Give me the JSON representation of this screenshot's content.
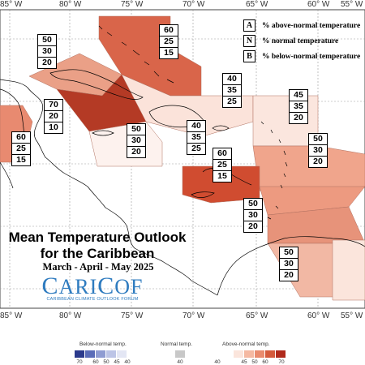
{
  "title_line1": "Mean Temperature Outlook",
  "title_line2": "for the Caribbean",
  "period": "March - April - May 2025",
  "logo": {
    "name_C": "C",
    "name_rest": "ARI",
    "name_C2": "C",
    "name_end": "OF",
    "subtitle": "CARIBBEAN CLIMATE OUTLOOK FORUM"
  },
  "key": [
    {
      "letter": "A",
      "text": "% above-normal temperature"
    },
    {
      "letter": "N",
      "text": "% normal temperature"
    },
    {
      "letter": "B",
      "text": "% below-normal temperature"
    }
  ],
  "longitudes_top": [
    "85° W",
    "80° W",
    "75° W",
    "70° W",
    "65° W",
    "60° W",
    "55° W"
  ],
  "longitudes_bottom": [
    "85° W",
    "80° W",
    "75° W",
    "70° W",
    "65° W",
    "60° W",
    "55° W"
  ],
  "boxes": [
    {
      "A": "60",
      "N": "25",
      "B": "15"
    },
    {
      "A": "50",
      "N": "30",
      "B": "20"
    },
    {
      "A": "70",
      "N": "20",
      "B": "10"
    },
    {
      "A": "60",
      "N": "25",
      "B": "15"
    },
    {
      "A": "40",
      "N": "35",
      "B": "25"
    },
    {
      "A": "45",
      "N": "35",
      "B": "20"
    },
    {
      "A": "50",
      "N": "30",
      "B": "20"
    },
    {
      "A": "40",
      "N": "35",
      "B": "25"
    },
    {
      "A": "50",
      "N": "30",
      "B": "20"
    },
    {
      "A": "60",
      "N": "25",
      "B": "15"
    },
    {
      "A": "50",
      "N": "30",
      "B": "20"
    },
    {
      "A": "50",
      "N": "30",
      "B": "20"
    }
  ],
  "colorbar": {
    "below_title": "Below-normal temp.",
    "normal_title": "Normal temp.",
    "above_title": "Above-normal temp.",
    "below_ticks": [
      "70",
      "60",
      "50",
      "45",
      "40"
    ],
    "normal_ticks": [
      "40"
    ],
    "above_ticks": [
      "40",
      "45",
      "50",
      "60",
      "70"
    ],
    "below_colors": [
      "#2b3a8c",
      "#5a6cb8",
      "#8f9cd2",
      "#bcc4e6",
      "#e3e6f4"
    ],
    "normal_color": "#c8c8c8",
    "above_colors": [
      "#fbe5dc",
      "#f5b9a2",
      "#e98b6e",
      "#d45a3c",
      "#b02a1c"
    ]
  }
}
